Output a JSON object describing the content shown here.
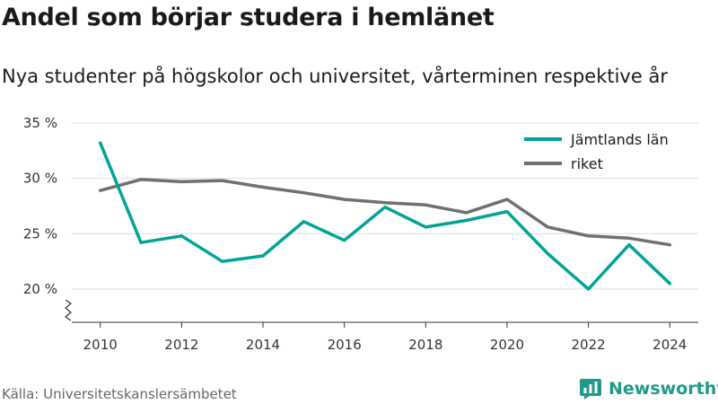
{
  "title": "Andel som börjar studera i hemlänet",
  "subtitle": "Nya studenter på högskolor och universitet, vårterminen respektive år",
  "source": "Källa: Universitetskanslersämbetet",
  "brand": "Newsworthy",
  "colors": {
    "jamtland": "#00a398",
    "riket": "#707070",
    "brand": "#1e9a8b",
    "grid": "#dddddd",
    "axis": "#333333"
  },
  "chart_data": {
    "type": "line",
    "x": [
      2010,
      2011,
      2012,
      2013,
      2014,
      2015,
      2016,
      2017,
      2018,
      2019,
      2020,
      2021,
      2022,
      2023,
      2024
    ],
    "series": [
      {
        "name": "Jämtlands län",
        "values": [
          33.2,
          24.2,
          24.8,
          22.5,
          23.0,
          26.1,
          24.4,
          27.4,
          25.6,
          26.2,
          27.0,
          23.2,
          20.0,
          24.0,
          20.5
        ]
      },
      {
        "name": "riket",
        "values": [
          28.9,
          29.9,
          29.7,
          29.8,
          29.2,
          28.7,
          28.1,
          27.8,
          27.6,
          26.9,
          28.1,
          25.6,
          24.8,
          24.6,
          24.0
        ]
      }
    ],
    "yticks": [
      20,
      25,
      30,
      35
    ],
    "ytick_labels": [
      "20 %",
      "25 %",
      "30 %",
      "35 %"
    ],
    "xticks": [
      2010,
      2012,
      2014,
      2016,
      2018,
      2020,
      2022,
      2024
    ],
    "xtick_labels": [
      "2010",
      "2012",
      "2014",
      "2016",
      "2018",
      "2020",
      "2022",
      "2024"
    ],
    "ylim": [
      17,
      35
    ],
    "xlim": [
      2009.3,
      2024.7
    ],
    "axis_break": true,
    "grid": true,
    "legend_position": "top-right"
  }
}
